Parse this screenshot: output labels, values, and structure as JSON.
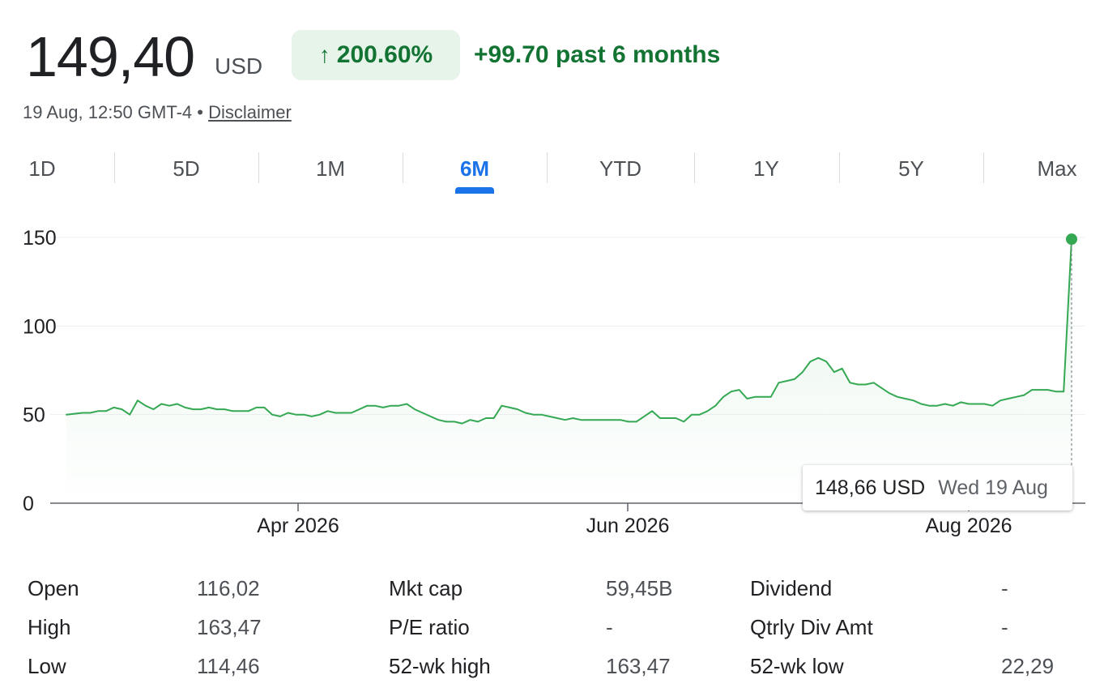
{
  "header": {
    "price": "149,40",
    "currency": "USD",
    "change_arrow": "↑",
    "change_pct": "200.60%",
    "change_abs": "+99.70 past 6 months",
    "timestamp": "19 Aug, 12:50 GMT-4",
    "separator": "•",
    "disclaimer": "Disclaimer"
  },
  "tabs": [
    {
      "label": "1D"
    },
    {
      "label": "5D"
    },
    {
      "label": "1M"
    },
    {
      "label": "6M",
      "active": true
    },
    {
      "label": "YTD"
    },
    {
      "label": "1Y"
    },
    {
      "label": "5Y"
    },
    {
      "label": "Max"
    }
  ],
  "colors": {
    "accent": "#1a73e8",
    "positive": "#137333",
    "line": "#34a853",
    "pill_bg": "#e6f4ea"
  },
  "tooltip": {
    "value": "148,66 USD",
    "date": "Wed 19 Aug"
  },
  "chart_data": {
    "type": "line",
    "x_tick_labels": [
      "Apr 2026",
      "Jun 2026",
      "Aug 2026"
    ],
    "y_tick_labels": [
      "0",
      "50",
      "100",
      "150"
    ],
    "ylim": [
      0,
      150
    ],
    "grid": true,
    "series": [
      {
        "values": [
          50,
          50.5,
          51,
          51,
          52,
          52,
          54,
          53,
          50,
          58,
          55,
          53,
          56,
          55,
          56,
          54,
          53,
          53,
          54,
          53,
          53,
          52,
          52,
          52,
          54,
          54,
          50,
          49,
          51,
          50,
          50,
          49,
          50,
          52,
          51,
          51,
          51,
          53,
          55,
          55,
          54,
          55,
          55,
          56,
          53,
          51,
          49,
          47,
          46,
          46,
          45,
          47,
          46,
          48,
          48,
          55,
          54,
          53,
          51,
          50,
          50,
          49,
          48,
          47,
          48,
          47,
          47,
          47,
          47,
          47,
          47,
          46,
          46,
          49,
          52,
          48,
          48,
          48,
          46,
          50,
          50,
          52,
          55,
          60,
          63,
          64,
          59,
          60,
          60,
          60,
          68,
          69,
          70,
          74,
          80,
          82,
          80,
          74,
          76,
          68,
          67,
          67,
          68,
          65,
          62,
          60,
          59,
          58,
          56,
          55,
          55,
          56,
          55,
          57,
          56,
          56,
          56,
          55,
          58,
          59,
          60,
          61,
          64,
          64,
          64,
          63,
          63,
          149
        ]
      }
    ],
    "last_point_marker": true
  },
  "stats": {
    "col1": [
      {
        "label": "Open",
        "value": "116,02"
      },
      {
        "label": "High",
        "value": "163,47"
      },
      {
        "label": "Low",
        "value": "114,46"
      }
    ],
    "col2": [
      {
        "label": "Mkt cap",
        "value": "59,45B"
      },
      {
        "label": "P/E ratio",
        "value": "-"
      },
      {
        "label": "52-wk high",
        "value": "163,47"
      }
    ],
    "col3": [
      {
        "label": "Dividend",
        "value": "-"
      },
      {
        "label": "Qtrly Div Amt",
        "value": "-"
      },
      {
        "label": "52-wk low",
        "value": "22,29"
      }
    ]
  }
}
